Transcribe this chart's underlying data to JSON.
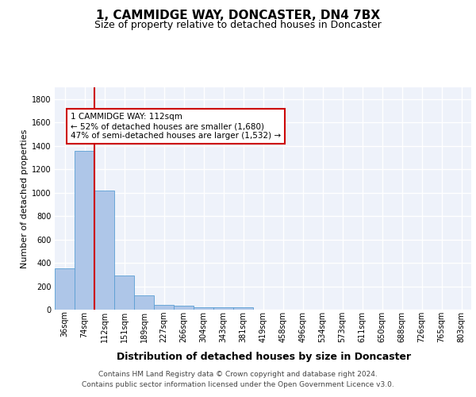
{
  "title": "1, CAMMIDGE WAY, DONCASTER, DN4 7BX",
  "subtitle": "Size of property relative to detached houses in Doncaster",
  "xlabel": "Distribution of detached houses by size in Doncaster",
  "ylabel": "Number of detached properties",
  "bar_values": [
    355,
    1360,
    1015,
    290,
    125,
    40,
    33,
    22,
    18,
    20,
    0,
    0,
    0,
    0,
    0,
    0,
    0,
    0,
    0,
    0,
    0
  ],
  "bin_labels": [
    "36sqm",
    "74sqm",
    "112sqm",
    "151sqm",
    "189sqm",
    "227sqm",
    "266sqm",
    "304sqm",
    "343sqm",
    "381sqm",
    "419sqm",
    "458sqm",
    "496sqm",
    "534sqm",
    "573sqm",
    "611sqm",
    "650sqm",
    "688sqm",
    "726sqm",
    "765sqm",
    "803sqm"
  ],
  "bar_color": "#aec6e8",
  "bar_edge_color": "#5a9fd4",
  "vline_index": 2,
  "vline_color": "#cc0000",
  "annotation_line1": "1 CAMMIDGE WAY: 112sqm",
  "annotation_line2": "← 52% of detached houses are smaller (1,680)",
  "annotation_line3": "47% of semi-detached houses are larger (1,532) →",
  "annotation_box_color": "#cc0000",
  "ylim": [
    0,
    1900
  ],
  "yticks": [
    0,
    200,
    400,
    600,
    800,
    1000,
    1200,
    1400,
    1600,
    1800
  ],
  "footer_line1": "Contains HM Land Registry data © Crown copyright and database right 2024.",
  "footer_line2": "Contains public sector information licensed under the Open Government Licence v3.0.",
  "background_color": "#eef2fa",
  "grid_color": "#ffffff",
  "title_fontsize": 11,
  "subtitle_fontsize": 9,
  "axis_ylabel_fontsize": 8,
  "tick_fontsize": 7,
  "annotation_fontsize": 7.5,
  "footer_fontsize": 6.5,
  "xlabel_fontsize": 9
}
